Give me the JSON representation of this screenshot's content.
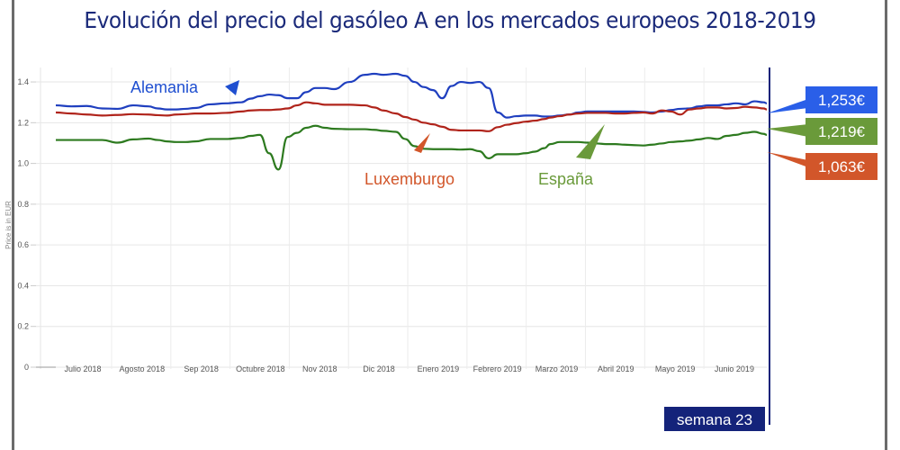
{
  "chart_data": {
    "type": "line",
    "title": "Evolución del precio del gasóleo A en los mercados europeos 2018-2019",
    "xlabel": "",
    "ylabel": "Price is in EUR",
    "ylim": [
      0,
      1.5
    ],
    "yticks": [
      0,
      0.2,
      0.4,
      0.6,
      0.8,
      1.0,
      1.2,
      1.4
    ],
    "ytick_labels": [
      "0",
      "0.2",
      "0.4",
      "0.6",
      "0.8",
      "1.0",
      "1.2",
      "1.4"
    ],
    "xtick_labels": [
      "Julio  2018",
      "Agosto 2018",
      "Sep 2018",
      "Octubre 2018",
      "Nov 2018",
      "Dic 2018",
      "Enero 2019",
      "Febrero 2019",
      "Marzo 2019",
      "Abril 2019",
      "Mayo 2019",
      "Junio 2019"
    ],
    "grid": true,
    "x": [
      0,
      0.5,
      1,
      1.5,
      2,
      2.5,
      3,
      3.3,
      3.6,
      3.9,
      4.2,
      4.5,
      5,
      5.5,
      6,
      6.3,
      6.6,
      6.9,
      7.2,
      7.5,
      7.8,
      8.1,
      8.4,
      8.7,
      9,
      9.5,
      10,
      10.3,
      10.6,
      11,
      11.3,
      11.6,
      11.9,
      12.2,
      12.5,
      12.8,
      13.1,
      13.4,
      13.7,
      14.0,
      14.3,
      14.6,
      14.9,
      15.2,
      15.5,
      15.8,
      16,
      16.3,
      16.6,
      16.9,
      17.2,
      17.5,
      17.8,
      18.1,
      18.4,
      18.7,
      19.0,
      19.3,
      19.6,
      19.9,
      20.2,
      20.5,
      20.8,
      21.1,
      21.4,
      21.7,
      22.0,
      22.3,
      22.6,
      22.9,
      23.0
    ],
    "series": [
      {
        "name": "Alemania",
        "color": "#1f3fbf",
        "values": [
          1.285,
          1.28,
          1.282,
          1.27,
          1.268,
          1.285,
          1.28,
          1.27,
          1.265,
          1.265,
          1.268,
          1.272,
          1.29,
          1.295,
          1.3,
          1.318,
          1.33,
          1.338,
          1.335,
          1.32,
          1.32,
          1.35,
          1.37,
          1.37,
          1.365,
          1.4,
          1.435,
          1.44,
          1.435,
          1.44,
          1.43,
          1.4,
          1.375,
          1.36,
          1.32,
          1.38,
          1.4,
          1.395,
          1.4,
          1.37,
          1.25,
          1.225,
          1.232,
          1.235,
          1.235,
          1.23,
          1.23,
          1.235,
          1.24,
          1.25,
          1.255,
          1.255,
          1.255,
          1.255,
          1.255,
          1.255,
          1.253,
          1.25,
          1.255,
          1.262,
          1.268,
          1.27,
          1.28,
          1.285,
          1.285,
          1.29,
          1.295,
          1.29,
          1.305,
          1.3,
          1.295
        ]
      },
      {
        "name": "Luxemburgo",
        "color": "#b0241b",
        "values": [
          1.25,
          1.245,
          1.24,
          1.235,
          1.238,
          1.242,
          1.24,
          1.237,
          1.235,
          1.24,
          1.242,
          1.245,
          1.245,
          1.248,
          1.255,
          1.26,
          1.262,
          1.262,
          1.265,
          1.27,
          1.285,
          1.3,
          1.295,
          1.288,
          1.288,
          1.288,
          1.285,
          1.275,
          1.26,
          1.245,
          1.228,
          1.215,
          1.2,
          1.192,
          1.18,
          1.165,
          1.162,
          1.162,
          1.162,
          1.158,
          1.178,
          1.19,
          1.198,
          1.205,
          1.21,
          1.218,
          1.225,
          1.232,
          1.24,
          1.245,
          1.248,
          1.248,
          1.248,
          1.245,
          1.245,
          1.248,
          1.25,
          1.245,
          1.26,
          1.255,
          1.24,
          1.265,
          1.27,
          1.275,
          1.275,
          1.27,
          1.272,
          1.278,
          1.275,
          1.27,
          1.265
        ]
      },
      {
        "name": "España",
        "color": "#2d7a1f",
        "values": [
          1.115,
          1.115,
          1.115,
          1.115,
          1.102,
          1.118,
          1.122,
          1.115,
          1.108,
          1.105,
          1.105,
          1.108,
          1.12,
          1.12,
          1.125,
          1.135,
          1.14,
          1.05,
          0.97,
          1.13,
          1.15,
          1.175,
          1.185,
          1.175,
          1.17,
          1.168,
          1.168,
          1.165,
          1.16,
          1.155,
          1.12,
          1.085,
          1.072,
          1.07,
          1.07,
          1.07,
          1.068,
          1.07,
          1.06,
          1.025,
          1.045,
          1.045,
          1.045,
          1.05,
          1.058,
          1.075,
          1.095,
          1.105,
          1.105,
          1.105,
          1.102,
          1.098,
          1.095,
          1.095,
          1.092,
          1.09,
          1.088,
          1.092,
          1.098,
          1.105,
          1.108,
          1.112,
          1.118,
          1.125,
          1.12,
          1.135,
          1.14,
          1.15,
          1.155,
          1.145,
          1.14
        ]
      }
    ],
    "annotations": [
      {
        "label": "Alemania",
        "color": "#1f4fd0"
      },
      {
        "label": "Luxemburgo",
        "color": "#d2562a"
      },
      {
        "label": "España",
        "color": "#6a9a3a"
      }
    ],
    "value_badges": [
      {
        "label": "1,253€",
        "color": "#2a5fe8",
        "series": "Alemania"
      },
      {
        "label": "1,219€",
        "color": "#6a9a3a",
        "series": "España"
      },
      {
        "label": "1,063€",
        "color": "#d2562a",
        "series": "Luxemburgo"
      }
    ],
    "marker_label": "semana 23",
    "marker_color": "#14237a"
  }
}
